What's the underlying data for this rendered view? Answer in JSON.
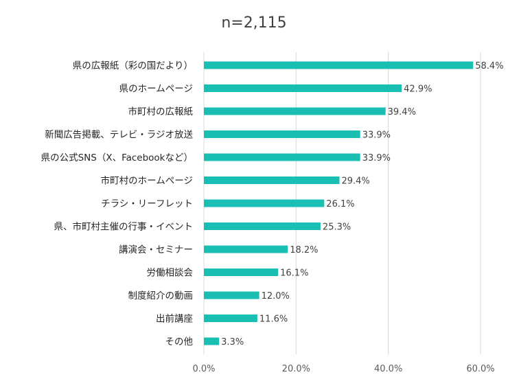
{
  "chart_data": {
    "type": "bar",
    "orientation": "horizontal",
    "title": "n=2,115",
    "categories": [
      "県の広報紙（彩の国だより）",
      "県のホームページ",
      "市町村の広報紙",
      "新聞広告掲載、テレビ・ラジオ放送",
      "県の公式SNS（X、Facebookなど）",
      "市町村のホームページ",
      "チラシ・リーフレット",
      "県、市町村主催の行事・イベント",
      "講演会・セミナー",
      "労働相談会",
      "制度紹介の動画",
      "出前講座",
      "その他"
    ],
    "values": [
      58.4,
      42.9,
      39.4,
      33.9,
      33.9,
      29.4,
      26.1,
      25.3,
      18.2,
      16.1,
      12.0,
      11.6,
      3.3
    ],
    "value_labels": [
      "58.4%",
      "42.9%",
      "39.4%",
      "33.9%",
      "33.9%",
      "29.4%",
      "26.1%",
      "25.3%",
      "18.2%",
      "16.1%",
      "12.0%",
      "11.6%",
      "3.3%"
    ],
    "xlim": [
      0,
      60
    ],
    "x_ticks": [
      0,
      20,
      40,
      60
    ],
    "x_tick_labels": [
      "0.0%",
      "20.0%",
      "40.0%",
      "60.0%"
    ],
    "grid": true,
    "legend": "none",
    "bar_color": "#1abfb4"
  }
}
